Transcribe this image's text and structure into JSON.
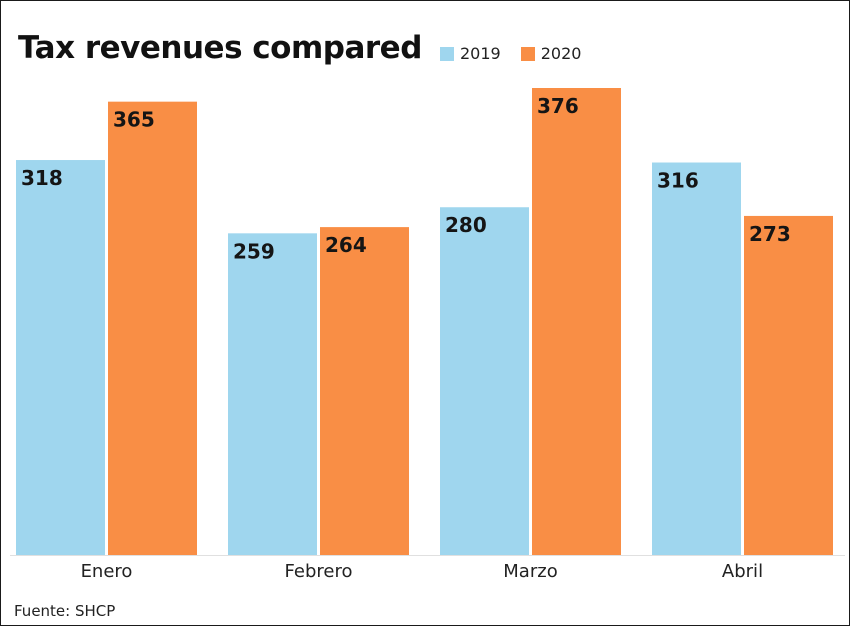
{
  "chart_data": {
    "type": "bar",
    "title": "Tax revenues compared",
    "categories": [
      "Enero",
      "Febrero",
      "Marzo",
      "Abril"
    ],
    "series": [
      {
        "name": "2019",
        "values": [
          318,
          259,
          280,
          316
        ],
        "color": "#9fd6ee"
      },
      {
        "name": "2020",
        "values": [
          365,
          264,
          376,
          273
        ],
        "color": "#f98e45"
      }
    ],
    "xlabel": "",
    "ylabel": "",
    "ylim": [
      0,
      400
    ],
    "grid": false,
    "legend_position": "top-right",
    "data_labels": true
  },
  "source": "Fuente: SHCP"
}
